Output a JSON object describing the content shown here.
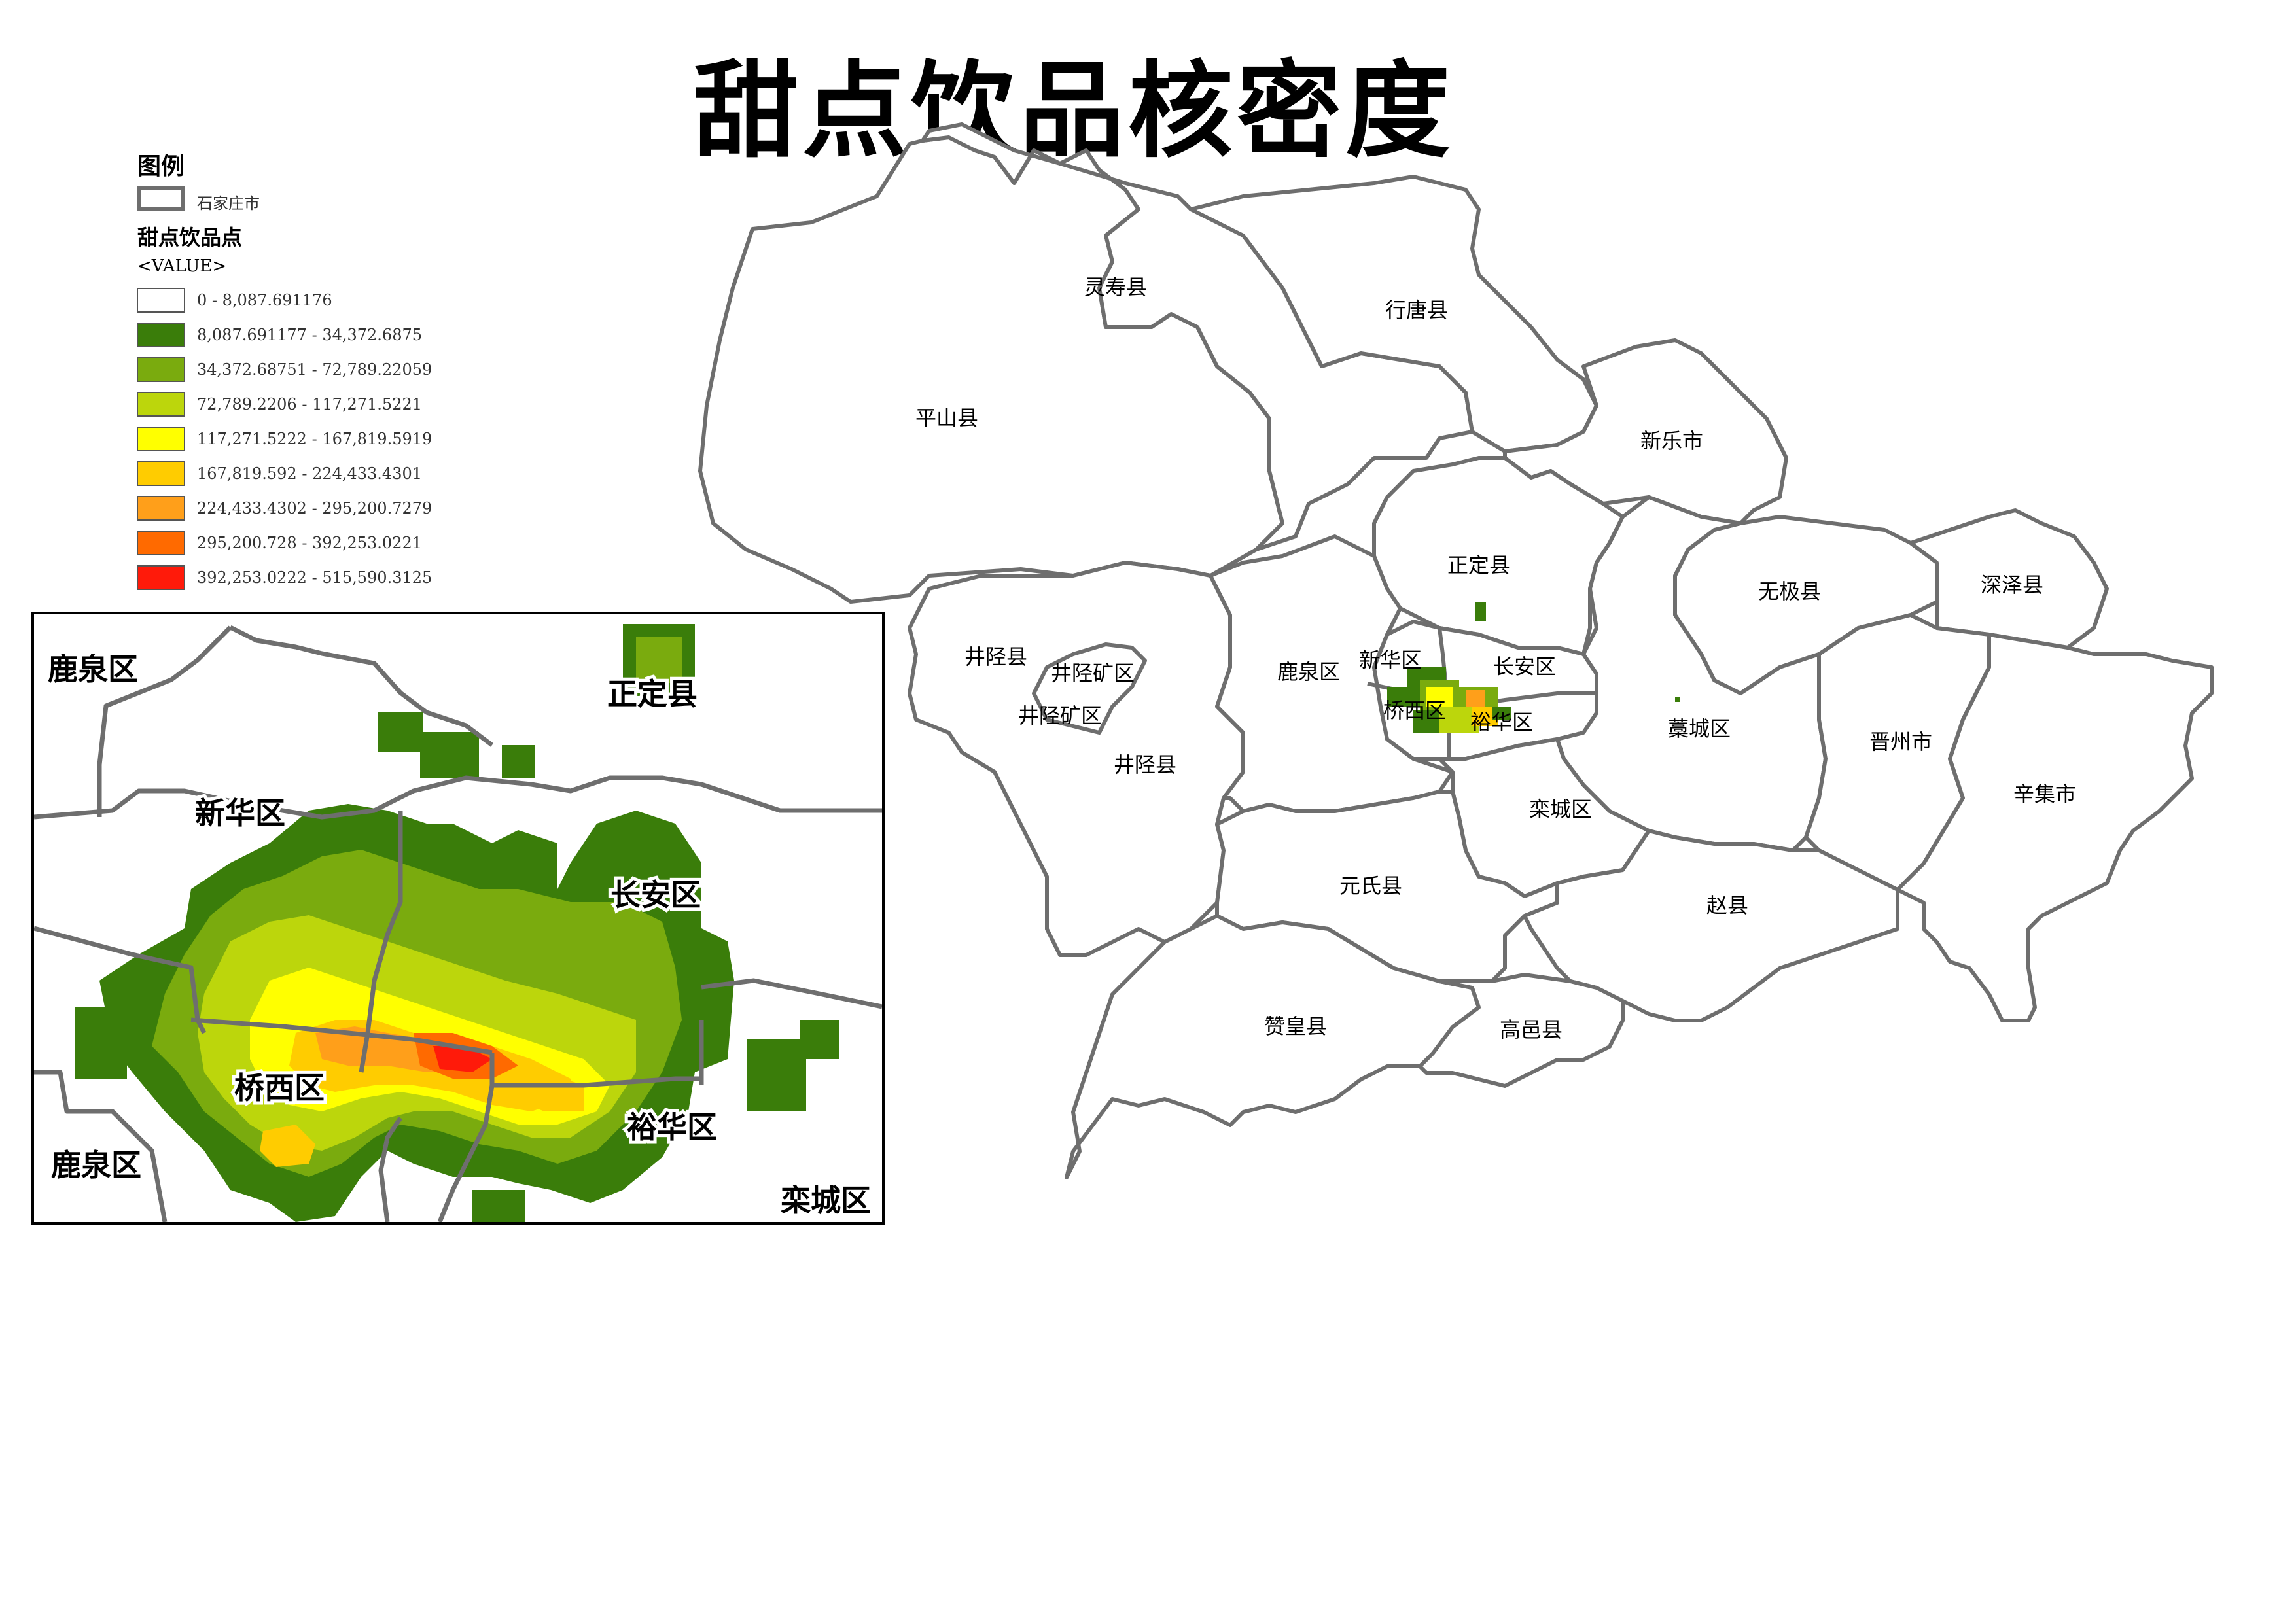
{
  "title": "甜点饮品核密度",
  "legend": {
    "heading": "图例",
    "boundary_label": "石家庄市",
    "layer_label": "甜点饮品点",
    "value_label": "<VALUE>",
    "classes": [
      {
        "label": "0 - 8,087.691176",
        "color": "#ffffff"
      },
      {
        "label": "8,087.691177 - 34,372.6875",
        "color": "#3a7d0a"
      },
      {
        "label": "34,372.68751 - 72,789.22059",
        "color": "#7aab0e"
      },
      {
        "label": "72,789.2206 - 117,271.5221",
        "color": "#bcd60c"
      },
      {
        "label": "117,271.5222 - 167,819.5919",
        "color": "#ffff00"
      },
      {
        "label": "167,819.592 - 224,433.4301",
        "color": "#ffcc00"
      },
      {
        "label": "224,433.4302 - 295,200.7279",
        "color": "#ff9f1a"
      },
      {
        "label": "295,200.728 - 392,253.0221",
        "color": "#ff6a00"
      },
      {
        "label": "392,253.0222 - 515,590.3125",
        "color": "#ff1a0a"
      }
    ]
  },
  "map": {
    "boundary_color": "#6e6e6e",
    "districts": [
      {
        "id": "lingshou",
        "name": "灵寿县"
      },
      {
        "id": "xingtang",
        "name": "行唐县"
      },
      {
        "id": "pingshan",
        "name": "平山县"
      },
      {
        "id": "xinle",
        "name": "新乐市"
      },
      {
        "id": "zhengding",
        "name": "正定县"
      },
      {
        "id": "wuji",
        "name": "无极县"
      },
      {
        "id": "shenze",
        "name": "深泽县"
      },
      {
        "id": "jingxing",
        "name": "井陉县"
      },
      {
        "id": "jingxingkuang1",
        "name": "井陉矿区"
      },
      {
        "id": "jingxingkuang2",
        "name": "井陉矿区"
      },
      {
        "id": "jingxing2",
        "name": "井陉县"
      },
      {
        "id": "luquan",
        "name": "鹿泉区"
      },
      {
        "id": "xinhua",
        "name": "新华区"
      },
      {
        "id": "changan",
        "name": "长安区"
      },
      {
        "id": "qiaoxi",
        "name": "桥西区"
      },
      {
        "id": "yuhua",
        "name": "裕华区"
      },
      {
        "id": "gaocheng",
        "name": "藁城区"
      },
      {
        "id": "jinzhou",
        "name": "晋州市"
      },
      {
        "id": "xinji",
        "name": "辛集市"
      },
      {
        "id": "luancheng",
        "name": "栾城区"
      },
      {
        "id": "yuanshi",
        "name": "元氏县"
      },
      {
        "id": "zhaoxian",
        "name": "赵县"
      },
      {
        "id": "zanhuang",
        "name": "赞皇县"
      },
      {
        "id": "gaoyi",
        "name": "高邑县"
      }
    ]
  },
  "inset": {
    "labels": [
      {
        "id": "luquan_top",
        "name": "鹿泉区"
      },
      {
        "id": "zhengding",
        "name": "正定县"
      },
      {
        "id": "xinhua",
        "name": "新华区"
      },
      {
        "id": "changan",
        "name": "长安区"
      },
      {
        "id": "qiaoxi",
        "name": "桥西区"
      },
      {
        "id": "yuhua",
        "name": "裕华区"
      },
      {
        "id": "luquan_bottom",
        "name": "鹿泉区"
      },
      {
        "id": "luancheng",
        "name": "栾城区"
      }
    ]
  }
}
